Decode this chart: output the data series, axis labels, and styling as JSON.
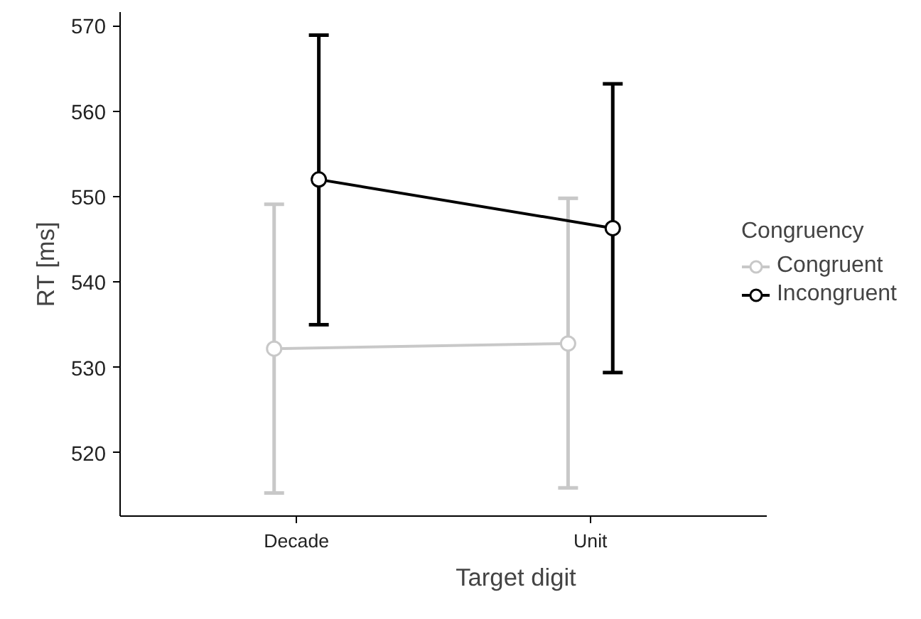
{
  "chart_data": {
    "type": "line",
    "xlabel": "Target digit",
    "ylabel": "RT [ms]",
    "legend_title": "Congruency",
    "categories": [
      "Decade",
      "Unit"
    ],
    "series": [
      {
        "name": "Congruent",
        "color": "#c8c8c8",
        "values": [
          532.2,
          532.8
        ],
        "errors": [
          [
            515.3,
            549.1
          ],
          [
            515.9,
            549.8
          ]
        ]
      },
      {
        "name": "Incongruent",
        "color": "#000000",
        "values": [
          552.0,
          546.3
        ],
        "errors": [
          [
            535.0,
            568.9
          ],
          [
            529.4,
            563.2
          ]
        ]
      }
    ],
    "ylim": [
      512.6,
      571.6
    ],
    "yticks": [
      520,
      530,
      540,
      550,
      560,
      570
    ],
    "grid": false,
    "legend": "right",
    "marker": "circle",
    "line_style": "solid"
  }
}
